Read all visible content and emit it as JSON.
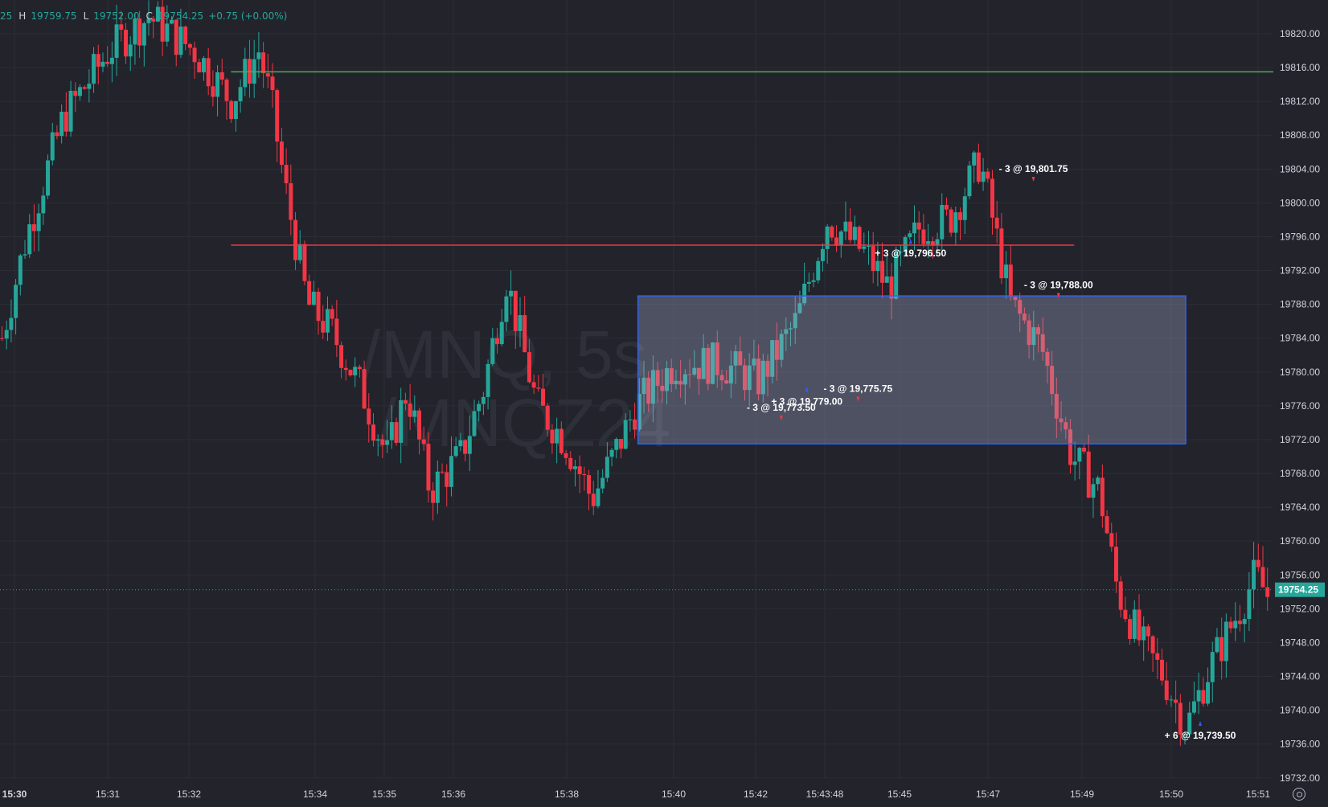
{
  "legend": {
    "open_partial": "25",
    "high_label": "H",
    "high": "19759.75",
    "low_label": "L",
    "low": "19752.00",
    "close_label": "C",
    "close": "19754.25",
    "change": "+0.75 (+0.00%)"
  },
  "watermark": {
    "line1": "/MNQ, 5s",
    "line2": "/MNQZ24"
  },
  "price_axis": {
    "ticks": [
      "19820.00",
      "19816.00",
      "19812.00",
      "19808.00",
      "19804.00",
      "19800.00",
      "19796.00",
      "19792.00",
      "19788.00",
      "19784.00",
      "19780.00",
      "19776.00",
      "19772.00",
      "19768.00",
      "19764.00",
      "19760.00",
      "19756.00",
      "19752.00",
      "19748.00",
      "19744.00",
      "19740.00",
      "19736.00",
      "19732.00"
    ],
    "tick_values": [
      19820,
      19816,
      19812,
      19808,
      19804,
      19800,
      19796,
      19792,
      19788,
      19784,
      19780,
      19776,
      19772,
      19768,
      19764,
      19760,
      19756,
      19752,
      19748,
      19744,
      19740,
      19736,
      19732
    ],
    "last_price": "19754.25",
    "last_price_value": 19754.25
  },
  "time_axis": {
    "labels": [
      "15:30",
      "15:31",
      "15:32",
      "15:34",
      "15:35",
      "15:36",
      "15:38",
      "15:40",
      "15:42",
      "15:43:48",
      "15:45",
      "15:47",
      "15:49",
      "15:50",
      "15:51"
    ]
  },
  "horizontal_lines": [
    {
      "price": 19815.5,
      "color": "#4caf50",
      "from_time": "15:32:40"
    },
    {
      "price": 19795.0,
      "color": "#f23645",
      "from_time": "15:32:40",
      "to_time": "15:48:50"
    }
  ],
  "rectangle": {
    "from_time": "15:39:20",
    "to_time": "15:50:10",
    "top_price": 19789,
    "bottom_price": 19771.5,
    "border_color": "#2962ff"
  },
  "trades": [
    {
      "label": "- 3 @ 19,801.75",
      "time": "15:47:58",
      "price": 19801.75,
      "side": "sell"
    },
    {
      "label": "- 3 @ 19,788.00",
      "time": "15:48:30",
      "price": 19788.0,
      "side": "sell"
    },
    {
      "label": "+ 3 @ 19,796.50",
      "time": "15:45:15",
      "price": 19796.5,
      "side": "buy"
    },
    {
      "label": "- 3 @ 19,773.50",
      "time": "15:42:40",
      "price": 19773.5,
      "side": "sell"
    },
    {
      "label": "- 3 @ 19,775.75",
      "time": "15:44:20",
      "price": 19775.75,
      "side": "sell"
    },
    {
      "label": "+ 3 @ 19,779.00",
      "time": "15:43:20",
      "price": 19779.0,
      "side": "buy"
    },
    {
      "label": "+ 6 @ 19,739.50",
      "time": "15:50:20",
      "price": 19739.5,
      "side": "buy"
    }
  ],
  "colors": {
    "up": "#26a69a",
    "down": "#f23645",
    "background": "#22232b",
    "grid": "#2c2d35",
    "axis_text": "#d1d4dc"
  },
  "icons": {
    "settings": "gear-icon"
  }
}
